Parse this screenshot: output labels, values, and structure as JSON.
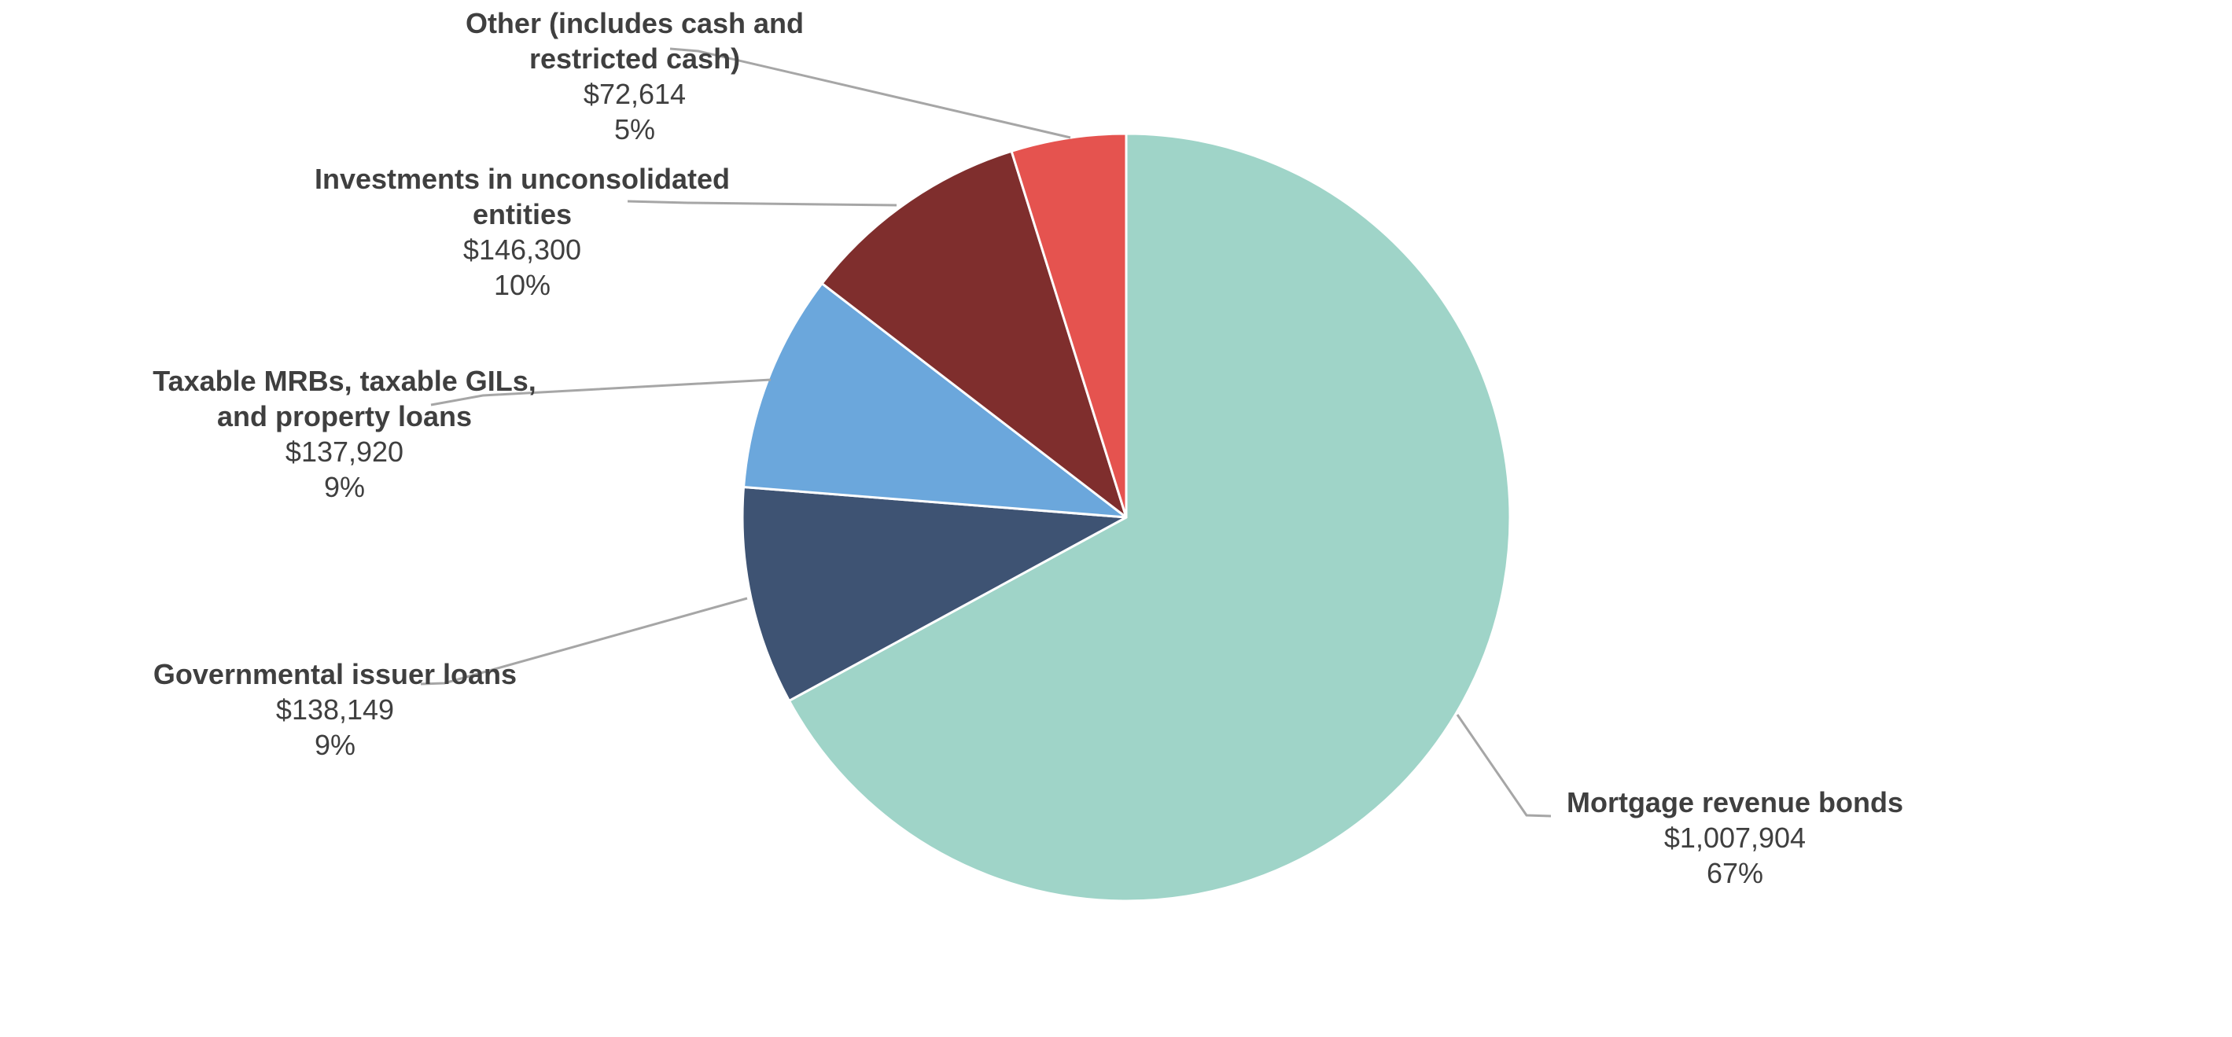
{
  "chart_data": {
    "type": "pie",
    "title": "",
    "legend": "none",
    "direction": "clockwise",
    "start_angle_deg": 0,
    "data_labels": "outside-with-leader-lines",
    "style": {
      "background": "#FFFFFF",
      "text_color": "#3F3F3F",
      "leader_line_color": "#A6A6A6",
      "slice_border_color": "#FFFFFF"
    },
    "slices": [
      {
        "label": "Mortgage revenue bonds",
        "name_lines": [
          "Mortgage revenue bonds"
        ],
        "value": 1007904,
        "value_display": "$1,007,904",
        "pct_display": "67%",
        "color": "#9FD4C8"
      },
      {
        "label": "Governmental issuer loans",
        "name_lines": [
          "Governmental issuer loans"
        ],
        "value": 138149,
        "value_display": "$138,149",
        "pct_display": "9%",
        "color": "#3E5373"
      },
      {
        "label": "Taxable MRBs, taxable GILs, and property loans",
        "name_lines": [
          "Taxable MRBs, taxable GILs,",
          "and property loans"
        ],
        "value": 137920,
        "value_display": "$137,920",
        "pct_display": "9%",
        "color": "#6BA7DC"
      },
      {
        "label": "Investments in unconsolidated entities",
        "name_lines": [
          "Investments in unconsolidated",
          "entities"
        ],
        "value": 146300,
        "value_display": "$146,300",
        "pct_display": "10%",
        "color": "#7F2E2D"
      },
      {
        "label": "Other (includes cash and restricted cash)",
        "name_lines": [
          "Other (includes cash and",
          "restricted cash)"
        ],
        "value": 72614,
        "value_display": "$72,614",
        "pct_display": "5%",
        "color": "#E5534F"
      }
    ]
  }
}
